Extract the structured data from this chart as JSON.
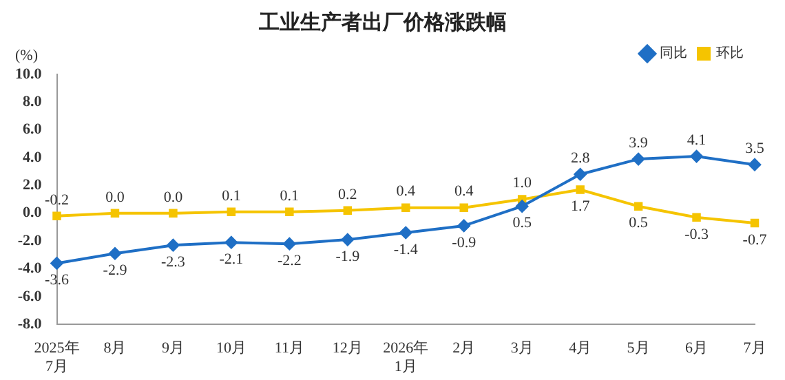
{
  "chart_data": {
    "type": "line",
    "title": "工业生产者出厂价格涨跌幅",
    "ylabel": "(%)",
    "categories": [
      "2025年\n7月",
      "8月",
      "9月",
      "10月",
      "11月",
      "12月",
      "2026年\n1月",
      "2月",
      "3月",
      "4月",
      "5月",
      "6月",
      "7月"
    ],
    "series": [
      {
        "name": "同比",
        "color": "#1f6fc5",
        "marker": "diamond",
        "values": [
          -3.6,
          -2.9,
          -2.3,
          -2.1,
          -2.2,
          -1.9,
          -1.4,
          -0.9,
          0.5,
          2.8,
          3.9,
          4.1,
          3.5
        ],
        "value_labels": [
          "-3.6",
          "-2.9",
          "-2.3",
          "-2.1",
          "-2.2",
          "-1.9",
          "-1.4",
          "-0.9",
          "0.5",
          "2.8",
          "3.9",
          "4.1",
          "3.5"
        ]
      },
      {
        "name": "环比",
        "color": "#f5c400",
        "marker": "square",
        "values": [
          -0.2,
          0.0,
          0.0,
          0.1,
          0.1,
          0.2,
          0.4,
          0.4,
          1.0,
          1.7,
          0.5,
          -0.3,
          -0.7
        ],
        "value_labels": [
          "-0.2",
          "0.0",
          "0.0",
          "0.1",
          "0.1",
          "0.2",
          "0.4",
          "0.4",
          "1.0",
          "1.7",
          "0.5",
          "-0.3",
          "-0.7"
        ]
      }
    ],
    "ylim": [
      -8,
      10
    ],
    "yticks": [
      {
        "value": 10,
        "label": "10.0"
      },
      {
        "value": 8,
        "label": "8.0"
      },
      {
        "value": 6,
        "label": "6.0"
      },
      {
        "value": 4,
        "label": "4.0"
      },
      {
        "value": 2,
        "label": "2.0"
      },
      {
        "value": 0,
        "label": "0.0"
      },
      {
        "value": -2,
        "label": "-2.0"
      },
      {
        "value": -4,
        "label": "-4.0"
      },
      {
        "value": -6,
        "label": "-6.0"
      },
      {
        "value": -8,
        "label": "-8.0"
      }
    ],
    "grid": false,
    "legend": "top right",
    "line_style": "solid"
  }
}
